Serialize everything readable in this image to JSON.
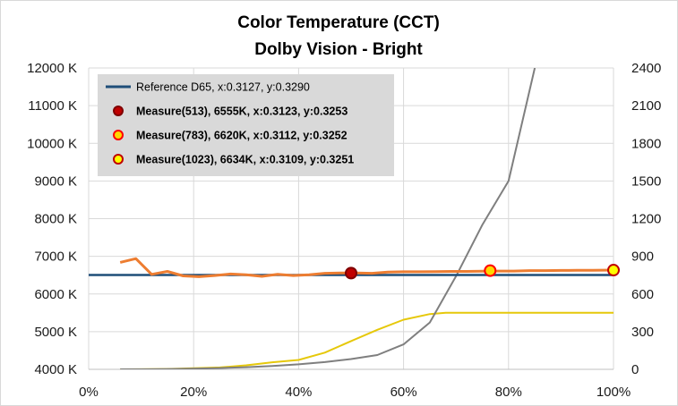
{
  "chart_data": {
    "type": "line",
    "title": "Color Temperature (CCT)",
    "subtitle": "Dolby Vision - Bright",
    "x_ticks": [
      "0%",
      "20%",
      "40%",
      "60%",
      "80%",
      "100%"
    ],
    "y_left_ticks": [
      "4000 K",
      "5000 K",
      "6000 K",
      "7000 K",
      "8000 K",
      "9000 K",
      "10000 K",
      "11000 K",
      "12000 K"
    ],
    "y_right_ticks": [
      "0",
      "300",
      "600",
      "900",
      "1200",
      "1500",
      "1800",
      "2100",
      "2400"
    ],
    "xlim": [
      0,
      100
    ],
    "ylim_left": [
      4000,
      12000
    ],
    "ylim_right": [
      0,
      2400
    ],
    "grid": true,
    "legend_position": "top-left",
    "legend": [
      {
        "label": "Reference D65, x:0.3127, y:0.3290",
        "marker": "line",
        "color": "#1f4e79"
      },
      {
        "label": "Measure(513), 6555K, x:0.3123, y:0.3253",
        "marker": "circle",
        "fill": "#c00000",
        "stroke": "#7f0000"
      },
      {
        "label": "Measure(783), 6620K, x:0.3112, y:0.3252",
        "marker": "circle",
        "fill": "#ffd700",
        "stroke": "#ff0000"
      },
      {
        "label": "Measure(1023), 6634K, x:0.3109, y:0.3251",
        "marker": "circle",
        "fill": "#ffff00",
        "stroke": "#c00000"
      }
    ],
    "series": [
      {
        "name": "Reference D65, x:0.3127, y:0.3290",
        "axis": "left",
        "color": "#1f4e79",
        "x": [
          0,
          100
        ],
        "y": [
          6504,
          6504
        ]
      },
      {
        "axis": "left",
        "color": "#ed7d31",
        "x": [
          6,
          9,
          12,
          15,
          18,
          21,
          24,
          27,
          30,
          33,
          36,
          39,
          42,
          45,
          48,
          51,
          54,
          57,
          60,
          63,
          66,
          69,
          72,
          75,
          78,
          81,
          84,
          87,
          90,
          93,
          96,
          100
        ],
        "y": [
          6840,
          6940,
          6520,
          6600,
          6480,
          6460,
          6490,
          6530,
          6510,
          6470,
          6520,
          6490,
          6510,
          6550,
          6560,
          6560,
          6550,
          6580,
          6590,
          6590,
          6595,
          6600,
          6600,
          6605,
          6610,
          6610,
          6620,
          6620,
          6625,
          6628,
          6630,
          6634
        ]
      },
      {
        "axis": "right",
        "color": "#7f7f7f",
        "x": [
          6,
          10,
          15,
          20,
          25,
          30,
          35,
          40,
          45,
          50,
          55,
          60,
          65,
          70,
          75,
          80,
          85
        ],
        "y": [
          0,
          0.3,
          2,
          5,
          10,
          17,
          27,
          40,
          58,
          82,
          114,
          199,
          373,
          742,
          1150,
          1500,
          2400
        ]
      },
      {
        "axis": "right",
        "color": "#e6c80a",
        "x": [
          6,
          10,
          15,
          20,
          25,
          30,
          35,
          40,
          45,
          50,
          55,
          60,
          65,
          68,
          100
        ],
        "y": [
          0,
          0.5,
          3,
          9,
          15,
          32,
          56,
          75,
          133,
          225,
          315,
          395,
          440,
          450,
          450
        ]
      }
    ],
    "markers": [
      {
        "x": 50,
        "y": 6555,
        "fill": "#c00000",
        "stroke": "#7f0000"
      },
      {
        "x": 76.5,
        "y": 6620,
        "fill": "#ffd700",
        "stroke": "#ff0000"
      },
      {
        "x": 100,
        "y": 6634,
        "fill": "#ffff00",
        "stroke": "#c00000"
      }
    ]
  }
}
